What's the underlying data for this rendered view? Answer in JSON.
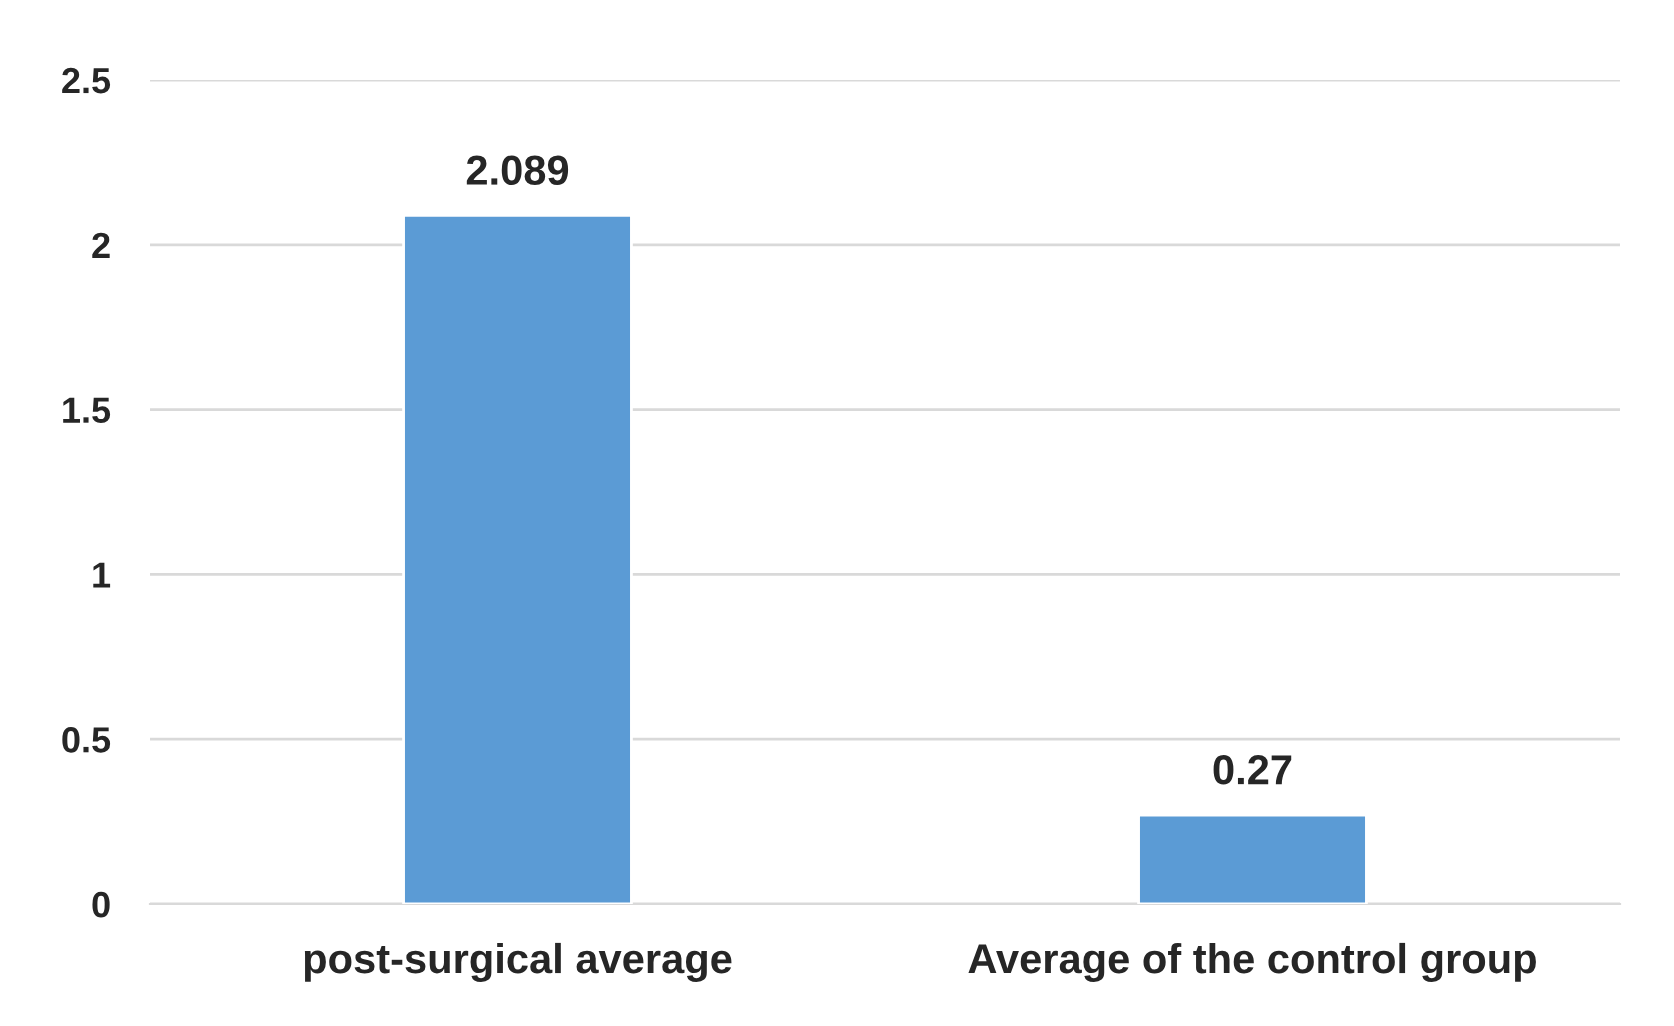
{
  "chart_data": {
    "type": "bar",
    "categories": [
      "post-surgical average",
      "Average of the control group"
    ],
    "values": [
      2.089,
      0.27
    ],
    "color": "#5b9bd5",
    "ylim": [
      0,
      2.5
    ],
    "yticks": [
      0,
      0.5,
      1,
      1.5,
      2,
      2.5
    ],
    "grid": "y",
    "data_labels": true
  }
}
